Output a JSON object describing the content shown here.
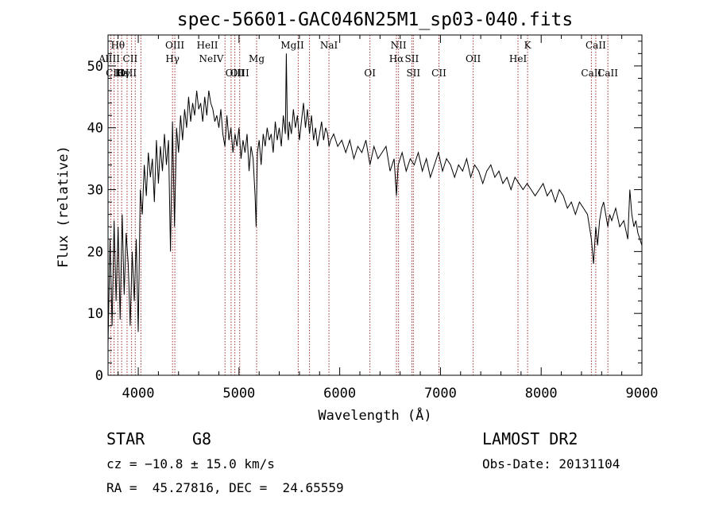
{
  "chart_data": {
    "type": "line",
    "title": "spec-56601-GAC046N25M1_sp03-040.fits",
    "xlabel": "Wavelength (Å)",
    "ylabel": "Flux (relative)",
    "xlim": [
      3700,
      9000
    ],
    "ylim": [
      0,
      55
    ],
    "xticks": [
      4000,
      5000,
      6000,
      7000,
      8000,
      9000
    ],
    "yticks": [
      0,
      10,
      20,
      30,
      40,
      50
    ],
    "grid": false,
    "series": [
      {
        "x": [
          3700,
          3720,
          3740,
          3760,
          3780,
          3800,
          3820,
          3840,
          3860,
          3880,
          3900,
          3920,
          3940,
          3960,
          3980,
          4000,
          4020,
          4040,
          4060,
          4080,
          4100,
          4120,
          4140,
          4160,
          4180,
          4200,
          4220,
          4240,
          4260,
          4280,
          4300,
          4320,
          4340,
          4360,
          4380,
          4400,
          4420,
          4440,
          4460,
          4480,
          4500,
          4520,
          4540,
          4560,
          4580,
          4600,
          4620,
          4640,
          4660,
          4680,
          4700,
          4720,
          4740,
          4760,
          4780,
          4800,
          4820,
          4840,
          4860,
          4880,
          4900,
          4920,
          4940,
          4960,
          4980,
          5000,
          5020,
          5040,
          5060,
          5080,
          5100,
          5120,
          5140,
          5160,
          5170,
          5183,
          5200,
          5220,
          5240,
          5260,
          5280,
          5300,
          5320,
          5340,
          5360,
          5380,
          5400,
          5420,
          5440,
          5460,
          5470,
          5480,
          5490,
          5500,
          5520,
          5540,
          5560,
          5580,
          5600,
          5620,
          5640,
          5660,
          5680,
          5700,
          5720,
          5740,
          5760,
          5780,
          5800,
          5820,
          5840,
          5860,
          5880,
          5893,
          5910,
          5940,
          5980,
          6020,
          6060,
          6100,
          6140,
          6180,
          6220,
          6260,
          6300,
          6340,
          6380,
          6420,
          6460,
          6500,
          6540,
          6563,
          6580,
          6620,
          6660,
          6700,
          6740,
          6780,
          6820,
          6860,
          6900,
          6940,
          6980,
          7020,
          7060,
          7100,
          7140,
          7180,
          7220,
          7260,
          7300,
          7340,
          7380,
          7420,
          7460,
          7500,
          7540,
          7580,
          7620,
          7660,
          7700,
          7740,
          7780,
          7820,
          7860,
          7900,
          7940,
          7980,
          8020,
          8060,
          8100,
          8140,
          8180,
          8220,
          8260,
          8300,
          8340,
          8380,
          8420,
          8460,
          8498,
          8520,
          8542,
          8560,
          8580,
          8600,
          8620,
          8662,
          8680,
          8700,
          8740,
          8780,
          8820,
          8860,
          8880,
          8900,
          8920,
          8940,
          8960,
          8980,
          9000
        ],
        "y": [
          5,
          22,
          8,
          25,
          12,
          24,
          9,
          26,
          13,
          23,
          18,
          8,
          20,
          12,
          22,
          7,
          30,
          26,
          34,
          29,
          36,
          32,
          35,
          28,
          38,
          31,
          37,
          33,
          39,
          34,
          38,
          20,
          41,
          24,
          40,
          36,
          42,
          38,
          43,
          40,
          45,
          41,
          44,
          42,
          46,
          43,
          44,
          41,
          45,
          42,
          46,
          44,
          43,
          41,
          42,
          40,
          43,
          39,
          37,
          42,
          38,
          40,
          36,
          39,
          37,
          40,
          35,
          38,
          36,
          39,
          33,
          37,
          35,
          29,
          24,
          36,
          38,
          34,
          39,
          37,
          40,
          38,
          39,
          36,
          41,
          38,
          40,
          37,
          42,
          39,
          52,
          40,
          38,
          41,
          39,
          43,
          40,
          42,
          38,
          41,
          44,
          40,
          43,
          39,
          42,
          38,
          40,
          37,
          39,
          41,
          38,
          40,
          39,
          37,
          38,
          39,
          37,
          38,
          36,
          38,
          35,
          37,
          36,
          38,
          34,
          37,
          35,
          36,
          37,
          33,
          35,
          29,
          34,
          36,
          33,
          35,
          34,
          36,
          33,
          35,
          32,
          34,
          36,
          33,
          35,
          34,
          32,
          34,
          33,
          35,
          32,
          34,
          33,
          31,
          33,
          34,
          32,
          33,
          31,
          32,
          30,
          32,
          31,
          30,
          31,
          30,
          29,
          30,
          31,
          29,
          30,
          28,
          30,
          29,
          27,
          28,
          26,
          28,
          27,
          26,
          22,
          18,
          24,
          21,
          25,
          27,
          28,
          24,
          26,
          25,
          27,
          24,
          25,
          22,
          30,
          26,
          24,
          25,
          23,
          22,
          21
        ]
      }
    ],
    "line_ids": [
      {
        "label": "Hθ",
        "lambda": 3797,
        "row": 0
      },
      {
        "label": "AlIII",
        "lambda": 3713,
        "row": 1
      },
      {
        "label": "CIII",
        "lambda": 3770,
        "row": 2
      },
      {
        "label": "Hε",
        "lambda": 3835,
        "row": 2
      },
      {
        "label": "Hγ",
        "lambda": 3850,
        "row": 2
      },
      {
        "label": "CII",
        "lambda": 3920,
        "row": 1
      },
      {
        "label": "OIII",
        "lambda": 3890,
        "row": 2
      },
      {
        "label": "OIII",
        "lambda": 4363,
        "row": 0
      },
      {
        "label": "Hγ",
        "lambda": 4340,
        "row": 1
      },
      {
        "label": "HeII",
        "lambda": 4686,
        "row": 0
      },
      {
        "label": "NeIV",
        "lambda": 4725,
        "row": 1
      },
      {
        "label": "OIII",
        "lambda": 4959,
        "row": 2
      },
      {
        "label": "OIII",
        "lambda": 5007,
        "row": 2
      },
      {
        "label": "Mg",
        "lambda": 5175,
        "row": 1
      },
      {
        "label": "MgII",
        "lambda": 5530,
        "row": 0
      },
      {
        "label": "NaI",
        "lambda": 5893,
        "row": 0
      },
      {
        "label": "NII",
        "lambda": 6584,
        "row": 0
      },
      {
        "label": "Hα",
        "lambda": 6563,
        "row": 1
      },
      {
        "label": "SII",
        "lambda": 6716,
        "row": 1
      },
      {
        "label": "OI",
        "lambda": 6300,
        "row": 2
      },
      {
        "label": "SII",
        "lambda": 6731,
        "row": 2
      },
      {
        "label": "CII",
        "lambda": 6985,
        "row": 2
      },
      {
        "label": "OII",
        "lambda": 7325,
        "row": 1
      },
      {
        "label": "HeI",
        "lambda": 7770,
        "row": 1
      },
      {
        "label": "K",
        "lambda": 7865,
        "row": 0
      },
      {
        "label": "CaII",
        "lambda": 8542,
        "row": 0
      },
      {
        "label": "CaII",
        "lambda": 8498,
        "row": 2
      },
      {
        "label": "CaII",
        "lambda": 8662,
        "row": 2
      }
    ],
    "marker_lines": [
      3728,
      3760,
      3797,
      3835,
      3889,
      3934,
      3970,
      4026,
      4340,
      4363,
      4861,
      4922,
      4959,
      5007,
      5175,
      5588,
      5700,
      5893,
      6300,
      6563,
      6584,
      6716,
      6731,
      6985,
      7325,
      7770,
      7865,
      8498,
      8542,
      8662
    ]
  },
  "footer": {
    "object_class": "STAR",
    "subclass": "G8",
    "survey": "LAMOST DR2",
    "cz": "cz = −10.8 ± 15.0 km/s",
    "obs_date": "Obs-Date: 20131104",
    "radec": "RA =  45.27816, DEC =  24.65559"
  },
  "colors": {
    "spectrum": "#000000",
    "marker": "#a0302f"
  }
}
